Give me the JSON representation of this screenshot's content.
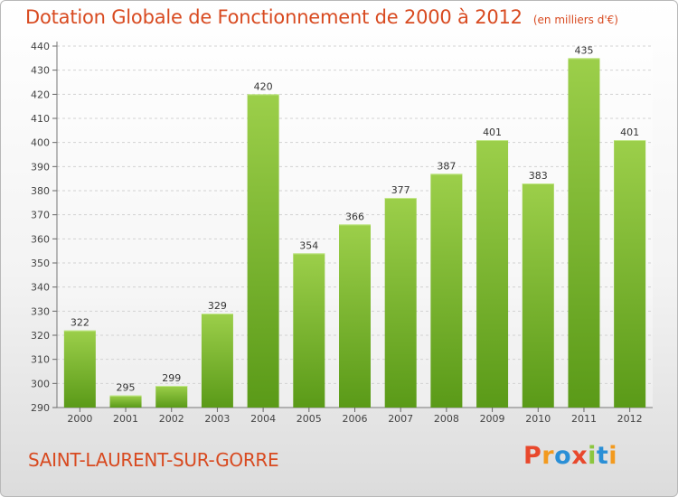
{
  "header": {
    "title": "Dotation Globale de Fonctionnement de 2000 à 2012",
    "unit": "(en milliers d'€)"
  },
  "footer": {
    "commune": "SAINT-LAURENT-SUR-GORRE",
    "brand": "Proxiti"
  },
  "colors": {
    "accent": "#d84a20",
    "bar_light": "#9ccf4a",
    "bar_dark": "#5a9a18",
    "brand_letters": [
      "#e8482c",
      "#f39a1e",
      "#2a8fd6",
      "#e8482c",
      "#8cc63e",
      "#2a8fd6",
      "#f39a1e"
    ]
  },
  "chart_data": {
    "type": "bar",
    "title": "Dotation Globale de Fonctionnement de 2000 à 2012",
    "subtitle": "(en milliers d'€)",
    "categories": [
      "2000",
      "2001",
      "2002",
      "2003",
      "2004",
      "2005",
      "2006",
      "2007",
      "2008",
      "2009",
      "2010",
      "2011",
      "2012"
    ],
    "values": [
      322,
      295,
      299,
      329,
      420,
      354,
      366,
      377,
      387,
      401,
      383,
      435,
      401
    ],
    "ylim": [
      290,
      440
    ],
    "yticks": [
      290,
      300,
      310,
      320,
      330,
      340,
      350,
      360,
      370,
      380,
      390,
      400,
      410,
      420,
      430,
      440
    ],
    "grid": true,
    "legend": "none"
  }
}
